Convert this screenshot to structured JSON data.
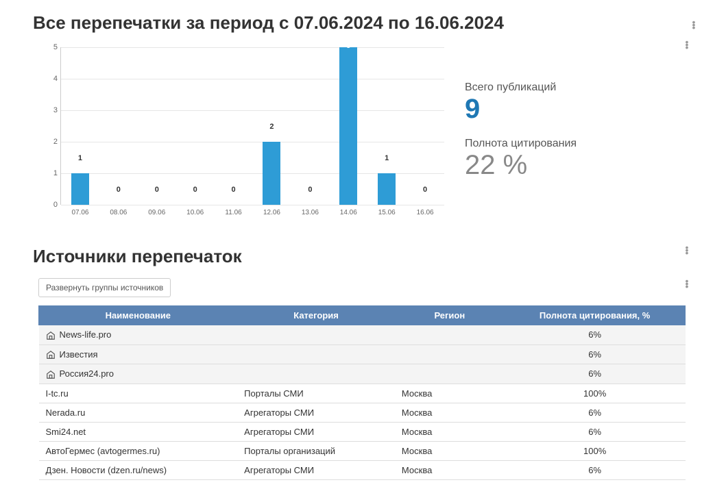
{
  "page": {
    "title": "Все перепечатки за период с 07.06.2024 по 16.06.2024"
  },
  "chart": {
    "type": "bar",
    "categories": [
      "07.06",
      "08.06",
      "09.06",
      "10.06",
      "11.06",
      "12.06",
      "13.06",
      "14.06",
      "15.06",
      "16.06"
    ],
    "values": [
      1,
      0,
      0,
      0,
      0,
      2,
      0,
      5,
      1,
      0
    ],
    "bar_color": "#2e9cd6",
    "ylim": [
      0,
      5
    ],
    "ytick_step": 1,
    "grid_color": "#e6e6e6",
    "axis_color": "#cccccc",
    "background_color": "#ffffff",
    "label_fontsize": 11
  },
  "stats": {
    "total_label": "Всего публикаций",
    "total_value": "9",
    "total_color": "#1f78b4",
    "completeness_label": "Полнота цитирования",
    "completeness_value": "22 %",
    "completeness_color": "#888888"
  },
  "sources": {
    "title": "Источники перепечаток",
    "expand_button": "Развернуть группы источников",
    "columns": [
      "Наименование",
      "Категория",
      "Регион",
      "Полнота цитирования, %"
    ],
    "header_bg": "#5b83b3",
    "rows": [
      {
        "is_group": true,
        "name": "News-life.pro",
        "category": "",
        "region": "",
        "pct": "6%"
      },
      {
        "is_group": true,
        "name": "Известия",
        "category": "",
        "region": "",
        "pct": "6%"
      },
      {
        "is_group": true,
        "name": "Россия24.pro",
        "category": "",
        "region": "",
        "pct": "6%"
      },
      {
        "is_group": false,
        "name": "I-tc.ru",
        "category": "Порталы СМИ",
        "region": "Москва",
        "pct": "100%"
      },
      {
        "is_group": false,
        "name": "Nerada.ru",
        "category": "Агрегаторы СМИ",
        "region": "Москва",
        "pct": "6%"
      },
      {
        "is_group": false,
        "name": "Smi24.net",
        "category": "Агрегаторы СМИ",
        "region": "Москва",
        "pct": "6%"
      },
      {
        "is_group": false,
        "name": "АвтоГермес (avtogermes.ru)",
        "category": "Порталы организаций",
        "region": "Москва",
        "pct": "100%"
      },
      {
        "is_group": false,
        "name": "Дзен. Новости (dzen.ru/news)",
        "category": "Агрегаторы СМИ",
        "region": "Москва",
        "pct": "6%"
      }
    ]
  }
}
